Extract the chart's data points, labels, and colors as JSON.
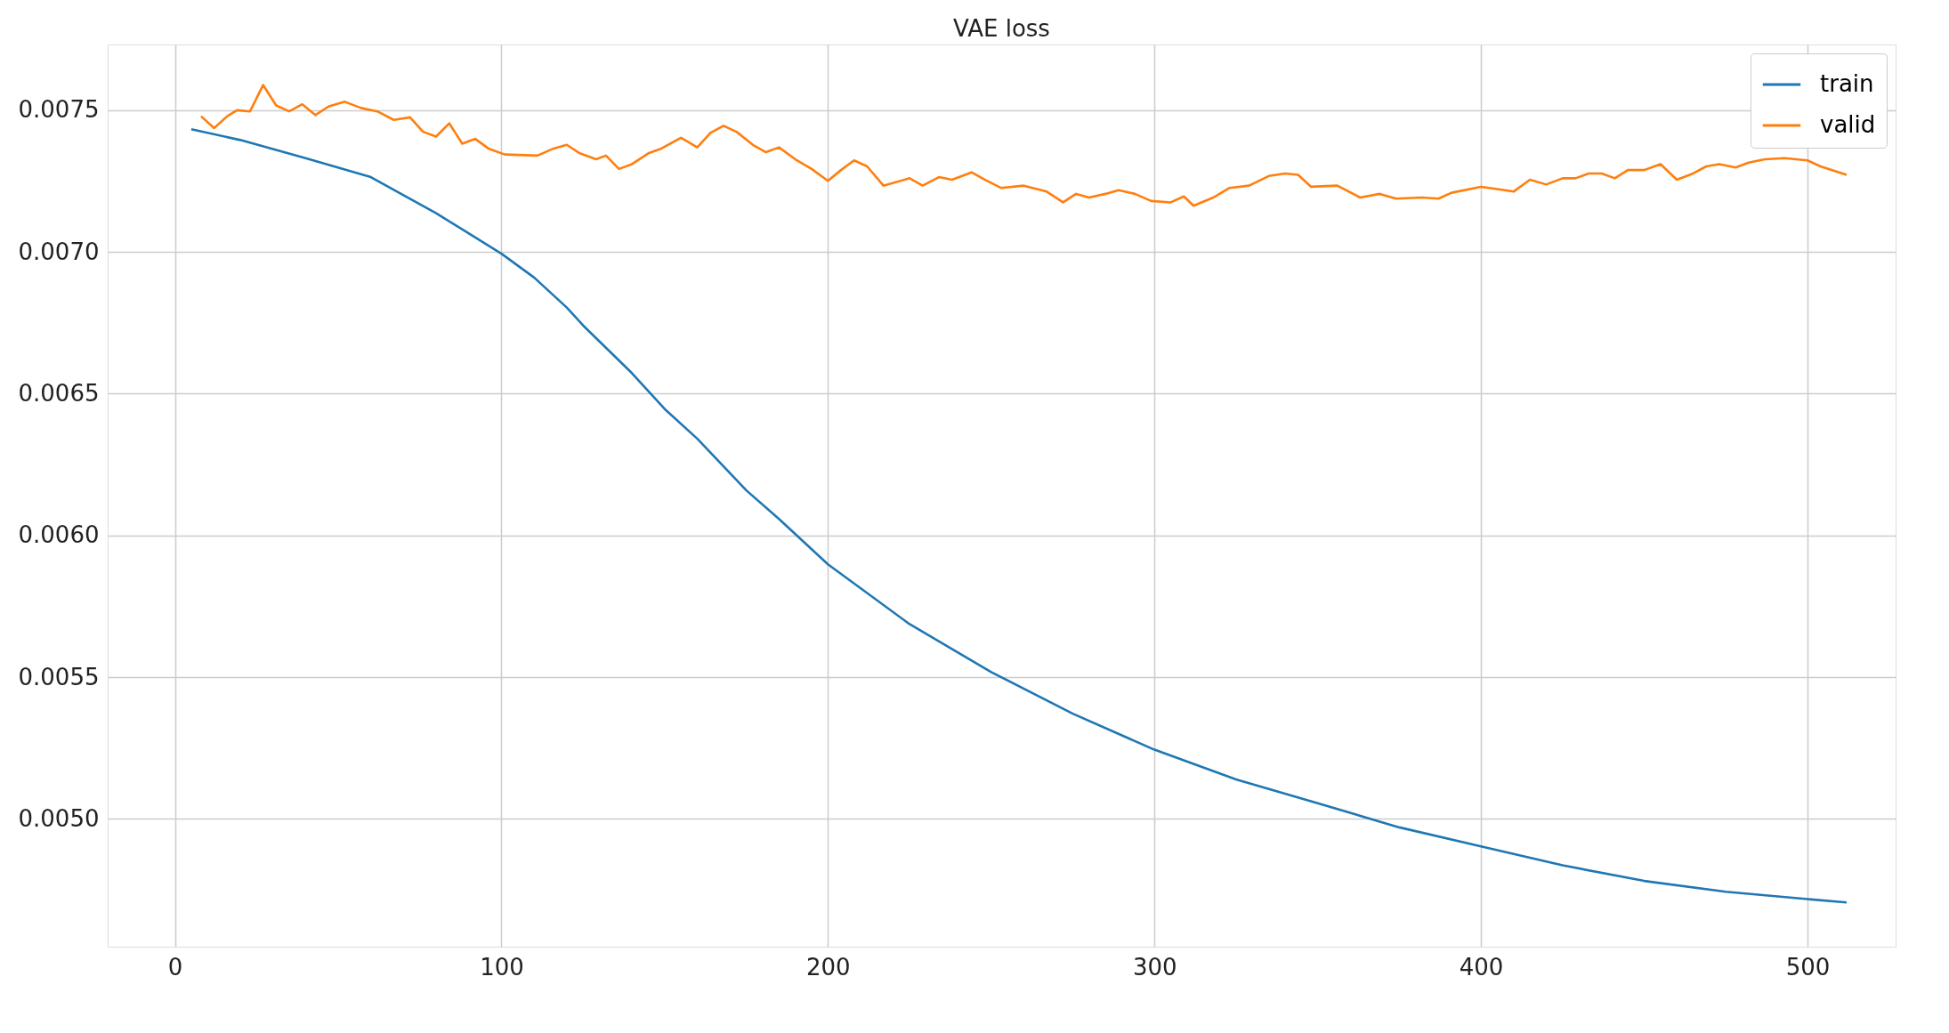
{
  "chart_data": {
    "type": "line",
    "title": "VAE loss",
    "xlim": [
      -20.6,
      527
    ],
    "xticks": [
      0,
      100,
      200,
      300,
      400,
      500
    ],
    "ylim": [
      0.004549,
      0.007732
    ],
    "yticks": [
      {
        "value": 0.005,
        "label": "0.0050"
      },
      {
        "value": 0.0055,
        "label": "0.0055"
      },
      {
        "value": 0.006,
        "label": "0.0060"
      },
      {
        "value": 0.0065,
        "label": "0.0065"
      },
      {
        "value": 0.007,
        "label": "0.0070"
      },
      {
        "value": 0.0075,
        "label": "0.0075"
      }
    ],
    "grid": true,
    "legend": "top right",
    "line_style": "solid",
    "marker": "none",
    "series": [
      {
        "name": "train",
        "color": "#1f77b4",
        "x": [
          5,
          20,
          40,
          60,
          80,
          100,
          110,
          120,
          125,
          140,
          150,
          160,
          175,
          185,
          200,
          225,
          250,
          275,
          300,
          325,
          350,
          375,
          400,
          425,
          450,
          475,
          500,
          512
        ],
        "values": [
          0.007433,
          0.007395,
          0.007331,
          0.007264,
          0.007137,
          0.006994,
          0.00691,
          0.006804,
          0.006741,
          0.006572,
          0.006446,
          0.006341,
          0.006159,
          0.006058,
          0.005898,
          0.005687,
          0.005518,
          0.005371,
          0.005244,
          0.005139,
          0.005055,
          0.00497,
          0.004903,
          0.004836,
          0.004781,
          0.004743,
          0.004717,
          0.004705
        ]
      },
      {
        "name": "valid",
        "color": "#ff7f0e",
        "x": [
          8,
          12,
          16,
          19,
          23,
          27,
          31,
          35,
          39,
          43,
          47,
          52,
          57,
          62,
          67,
          72,
          76,
          80,
          84,
          88,
          92,
          96,
          101,
          111,
          116,
          120,
          124,
          129,
          132,
          136,
          140,
          145,
          149,
          155,
          160,
          164,
          168,
          172,
          177,
          181,
          185,
          190,
          195,
          200,
          204,
          208,
          212,
          217,
          225,
          229,
          234,
          238,
          244,
          248,
          253,
          260,
          267,
          272,
          276,
          280,
          285,
          289,
          294,
          299,
          305,
          309,
          312,
          318,
          323,
          329,
          335,
          340,
          344,
          348,
          356,
          363,
          369,
          374,
          382,
          387,
          391,
          400,
          405,
          410,
          415,
          420,
          425,
          429,
          433,
          437,
          441,
          445,
          450,
          455,
          460,
          465,
          469,
          473,
          478,
          482,
          487,
          493,
          500,
          504,
          512
        ],
        "values": [
          0.007479,
          0.007437,
          0.007479,
          0.0075,
          0.007496,
          0.007589,
          0.007517,
          0.007496,
          0.007521,
          0.007483,
          0.007513,
          0.00753,
          0.007508,
          0.007496,
          0.007466,
          0.007475,
          0.007424,
          0.007407,
          0.007454,
          0.007382,
          0.007399,
          0.007365,
          0.007344,
          0.00734,
          0.007365,
          0.007378,
          0.007348,
          0.007327,
          0.00734,
          0.007293,
          0.00731,
          0.007348,
          0.007365,
          0.007403,
          0.007369,
          0.00742,
          0.007445,
          0.007424,
          0.007378,
          0.007352,
          0.007369,
          0.007327,
          0.007293,
          0.007251,
          0.007289,
          0.007323,
          0.007302,
          0.007234,
          0.00726,
          0.007234,
          0.007264,
          0.007255,
          0.007281,
          0.007255,
          0.007226,
          0.007234,
          0.007213,
          0.007175,
          0.007205,
          0.007192,
          0.007205,
          0.007218,
          0.007205,
          0.00718,
          0.007175,
          0.007196,
          0.007163,
          0.007192,
          0.007226,
          0.007234,
          0.007268,
          0.007277,
          0.007272,
          0.00723,
          0.007234,
          0.007192,
          0.007205,
          0.007188,
          0.007192,
          0.007188,
          0.007209,
          0.00723,
          0.007222,
          0.007213,
          0.007255,
          0.007238,
          0.00726,
          0.00726,
          0.007277,
          0.007277,
          0.00726,
          0.007289,
          0.007289,
          0.00731,
          0.007255,
          0.007277,
          0.007302,
          0.00731,
          0.007298,
          0.007315,
          0.007327,
          0.007331,
          0.007323,
          0.007302,
          0.007272
        ]
      }
    ]
  }
}
